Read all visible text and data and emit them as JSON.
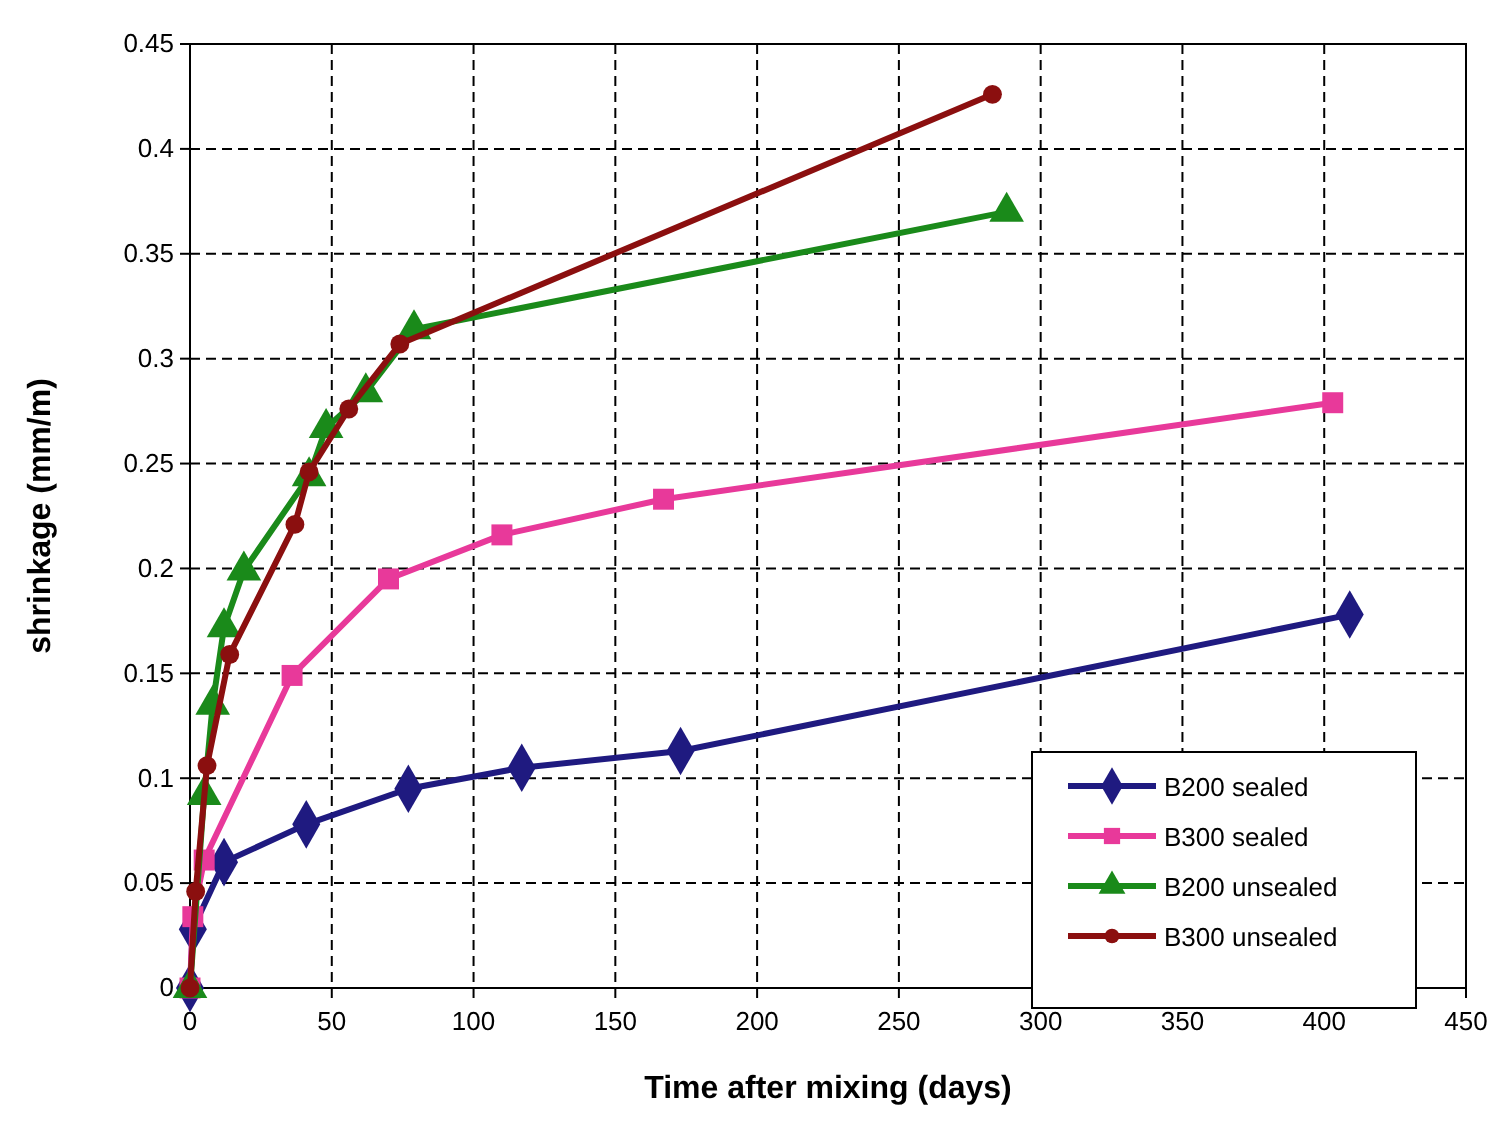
{
  "chart_data": {
    "type": "line",
    "xlabel": "Time after mixing (days)",
    "ylabel": "shrinkage (mm/m)",
    "xlim": [
      0,
      450
    ],
    "xticks": [
      0,
      50,
      100,
      150,
      200,
      250,
      300,
      350,
      400,
      450
    ],
    "ylim": [
      0,
      0.45
    ],
    "yticks": [
      0,
      0.05,
      0.1,
      0.15,
      0.2,
      0.25,
      0.3,
      0.35,
      0.4,
      0.45
    ],
    "grid": true,
    "legend": "bottom right",
    "line_style": "solid",
    "series": [
      {
        "name": "B200 sealed",
        "color": "#1f1a80",
        "marker": "diamond",
        "x": [
          0,
          1,
          12,
          41,
          77,
          117,
          173,
          409
        ],
        "values": [
          0,
          0.028,
          0.06,
          0.078,
          0.095,
          0.105,
          0.113,
          0.178
        ]
      },
      {
        "name": "B300 sealed",
        "color": "#e8399a",
        "marker": "square",
        "x": [
          0,
          1,
          5,
          36,
          70,
          110,
          167,
          403
        ],
        "values": [
          0,
          0.034,
          0.061,
          0.149,
          0.195,
          0.216,
          0.233,
          0.279
        ]
      },
      {
        "name": "B200 unsealed",
        "color": "#1a8a1a",
        "marker": "triangle",
        "x": [
          0,
          5,
          8,
          12,
          19,
          42,
          48,
          62,
          79,
          288
        ],
        "values": [
          0,
          0.092,
          0.135,
          0.172,
          0.199,
          0.244,
          0.267,
          0.284,
          0.314,
          0.37
        ]
      },
      {
        "name": "B300 unsealed",
        "color": "#8b0f0f",
        "marker": "circle",
        "x": [
          0,
          2,
          6,
          14,
          37,
          42,
          56,
          74,
          283
        ],
        "values": [
          0,
          0.046,
          0.106,
          0.159,
          0.221,
          0.246,
          0.276,
          0.307,
          0.426
        ]
      }
    ]
  }
}
